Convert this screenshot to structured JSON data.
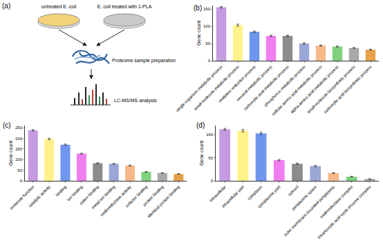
{
  "diagram": {
    "title": "(a)",
    "dishes": [
      "untreated E. coli",
      "E. coli treated with 1-PLA"
    ],
    "steps": [
      "Proteome sample preparation",
      "LC-MS/MS analysis"
    ]
  },
  "chart_data": [
    {
      "type": "bar",
      "title": "(b)",
      "y_label": "Gene count",
      "categories": [
        "single-organism metabolic process",
        "small molecule metabolic process",
        "oxidation-reduction process",
        "oxoacid metabolic process",
        "carboxylic acid metabolic process",
        "phosphorus metabolic process",
        "cellular amino acid metabolic process",
        "alpha-amino acid metabolic process",
        "small molecule biosynthetic process",
        "carboxylic acid biosynthetic process"
      ],
      "values": [
        155,
        103,
        84,
        72,
        72,
        50,
        44,
        41,
        37,
        32
      ],
      "errors": [
        2,
        3,
        2,
        2,
        2,
        2,
        1.5,
        1.5,
        1.5,
        1.5
      ],
      "colors": [
        "#c49be0",
        "#fff28a",
        "#6f96ee",
        "#f07ef0",
        "#8c8c8c",
        "#9aa6d6",
        "#f7b98a",
        "#7fd07f",
        "#a9a9a9",
        "#e8a24c"
      ],
      "ylim": [
        0,
        160
      ],
      "yticks": [
        0,
        50,
        100,
        150
      ]
    },
    {
      "type": "bar",
      "title": "(c)",
      "y_label": "Gene count",
      "categories": [
        "molecule function",
        "catalytic activity",
        "binding",
        "ion binding",
        "cation binding",
        "metal ion binding",
        "oxidoreductase activity",
        "cofactor binding",
        "protein binding",
        "identical protein binding"
      ],
      "values": [
        238,
        197,
        170,
        128,
        83,
        80,
        72,
        42,
        37,
        32
      ],
      "errors": [
        3,
        3,
        3,
        2,
        2,
        2,
        2,
        1.5,
        1.5,
        1.5
      ],
      "colors": [
        "#c49be0",
        "#fff28a",
        "#6f96ee",
        "#f07ef0",
        "#8c8c8c",
        "#9aa6d6",
        "#f7b98a",
        "#7fd07f",
        "#a9a9a9",
        "#e8a24c"
      ],
      "ylim": [
        0,
        260
      ],
      "yticks": [
        0,
        50,
        100,
        150,
        200,
        250
      ]
    },
    {
      "type": "bar",
      "title": "(d)",
      "y_label": "Gene count",
      "categories": [
        "intracellular",
        "intracellular part",
        "cytoplasm",
        "cytoplasmic part",
        "cytosol",
        "periplasmic space",
        "outer membrane-bounded periplasmic",
        "oxidoreductase complex",
        "tricarboxylic acid cycle enzyme complex"
      ],
      "values": [
        112,
        109,
        103,
        45,
        37,
        32,
        17,
        9,
        4
      ],
      "errors": [
        2,
        2.5,
        2.5,
        1.5,
        1.5,
        1.5,
        1,
        1,
        0.5
      ],
      "colors": [
        "#c49be0",
        "#fff28a",
        "#6f96ee",
        "#f07ef0",
        "#8c8c8c",
        "#9aa6d6",
        "#f7b98a",
        "#7fd07f",
        "#a9a9a9"
      ],
      "ylim": [
        0,
        120
      ],
      "yticks": [
        0,
        50,
        100
      ]
    }
  ]
}
